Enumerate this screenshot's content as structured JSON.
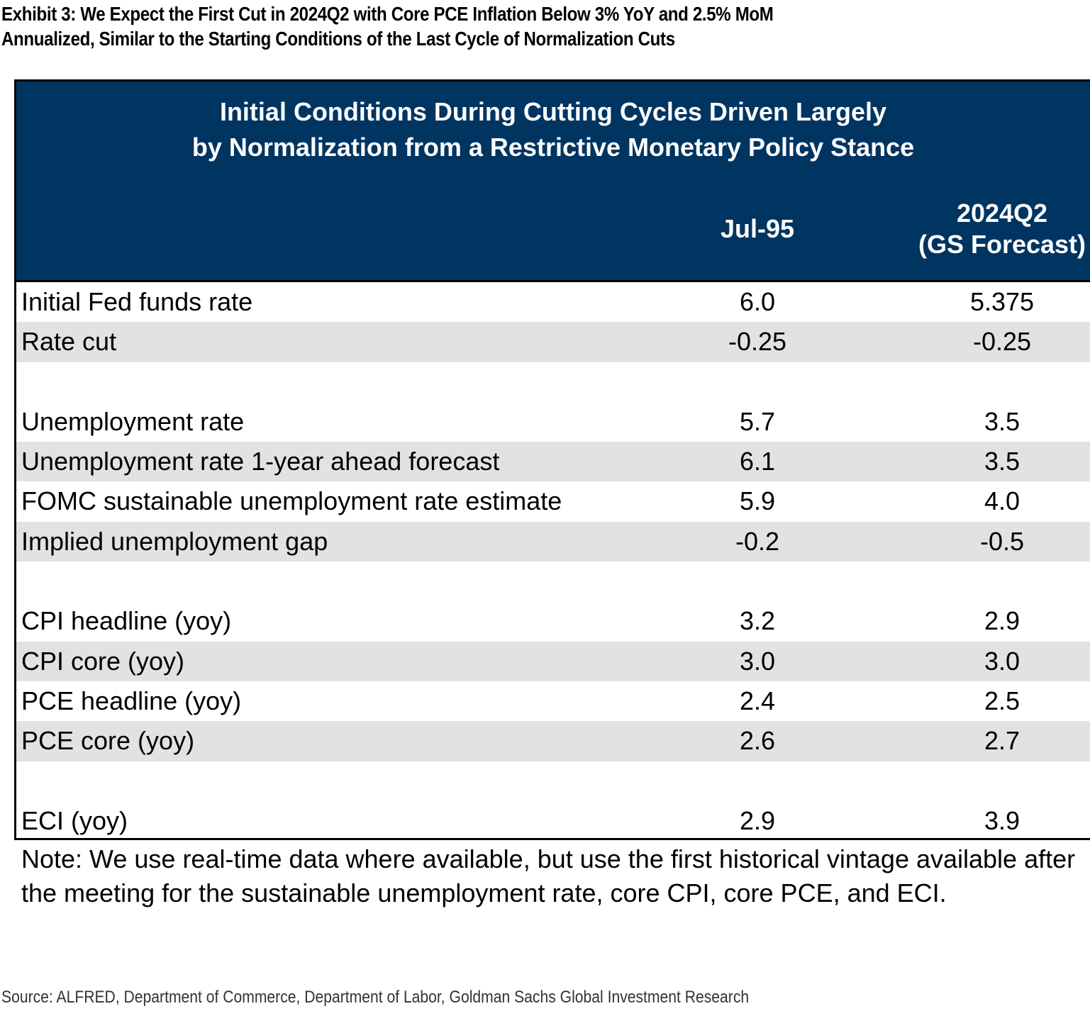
{
  "exhibit": {
    "title_lines": [
      "Exhibit 3: We Expect the First Cut in 2024Q2 with Core PCE Inflation Below 3% YoY and 2.5% MoM",
      "Annualized, Similar to the Starting Conditions of the Last Cycle of Normalization Cuts"
    ]
  },
  "table": {
    "title_lines": [
      "Initial Conditions During Cutting Cycles Driven Largely",
      "by Normalization from a Restrictive Monetary Policy Stance"
    ],
    "columns": {
      "col1": "Jul-95",
      "col2_line1": "2024Q2",
      "col2_line2": "(GS Forecast)"
    },
    "rows": [
      {
        "label": "Initial Fed funds rate",
        "v1": "6.0",
        "v2": "5.375"
      },
      {
        "label": "Rate cut",
        "v1": "-0.25",
        "v2": "-0.25"
      },
      {
        "label": "Unemployment rate",
        "v1": "5.7",
        "v2": "3.5"
      },
      {
        "label": "Unemployment rate 1-year ahead forecast",
        "v1": "6.1",
        "v2": "3.5"
      },
      {
        "label": "FOMC sustainable unemployment rate estimate",
        "v1": "5.9",
        "v2": "4.0"
      },
      {
        "label": "Implied unemployment gap",
        "v1": "-0.2",
        "v2": "-0.5"
      },
      {
        "label": "CPI headline (yoy)",
        "v1": "3.2",
        "v2": "2.9"
      },
      {
        "label": "CPI core (yoy)",
        "v1": "3.0",
        "v2": "3.0"
      },
      {
        "label": "PCE headline (yoy)",
        "v1": "2.4",
        "v2": "2.5"
      },
      {
        "label": "PCE core (yoy)",
        "v1": "2.6",
        "v2": "2.7"
      },
      {
        "label": "ECI (yoy)",
        "v1": "2.9",
        "v2": "3.9"
      }
    ]
  },
  "note": "Note: We use real-time data where available, but use the first historical vintage available after the meeting for the sustainable unemployment rate, core CPI, core PCE, and ECI.",
  "source": "Source: ALFRED, Department of Commerce, Department of Labor, Goldman Sachs Global Investment Research",
  "colors": {
    "header_bg": "#003461",
    "header_text": "#ffffff",
    "row_shade": "#e2e2e2"
  }
}
